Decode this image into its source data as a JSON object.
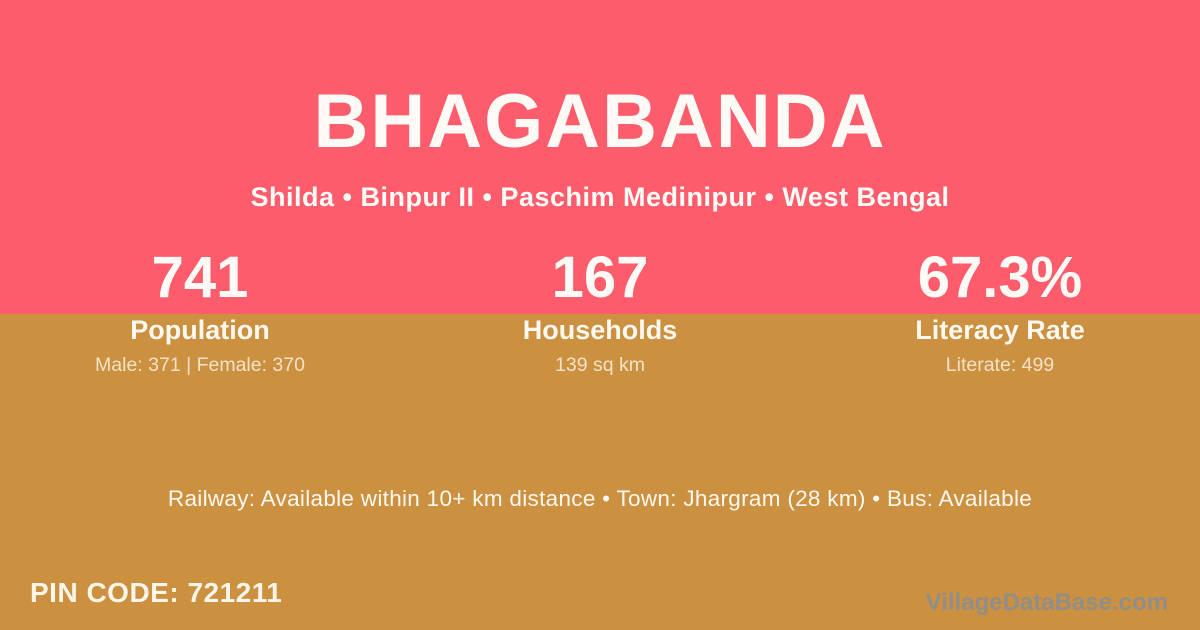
{
  "header": {
    "title": "BHAGABANDA",
    "subtitle": "Shilda • Binpur II • Paschim Medinipur • West Bengal"
  },
  "stats": [
    {
      "value": "741",
      "label": "Population",
      "detail": "Male: 371 | Female: 370"
    },
    {
      "value": "167",
      "label": "Households",
      "detail": "139 sq km"
    },
    {
      "value": "67.3%",
      "label": "Literacy Rate",
      "detail": "Literate: 499"
    }
  ],
  "footer": {
    "transport": "Railway: Available within 10+ km distance  •  Town: Jhargram (28 km)  •  Bus: Available",
    "pin_code": "PIN CODE: 721211",
    "watermark": "VillageDataBase.com"
  },
  "colors": {
    "top_bg": "#FC5C6C",
    "bottom_bg": "#CB9040"
  }
}
